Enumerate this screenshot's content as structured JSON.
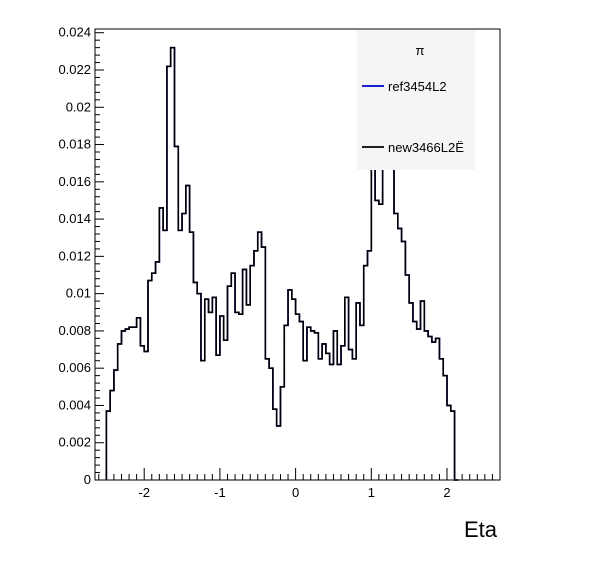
{
  "chart_data": {
    "type": "histogram",
    "xlabel": "Eta",
    "ylabel": "",
    "xlim": [
      -2.65,
      2.7
    ],
    "ylim": [
      0,
      0.0242
    ],
    "x_ticks": [
      -2,
      -1,
      0,
      1,
      2
    ],
    "x_tick_labels": [
      "-2",
      "-1",
      "0",
      "1",
      "2"
    ],
    "y_ticks": [
      0,
      0.002,
      0.004,
      0.006,
      0.008,
      0.01,
      0.012,
      0.014,
      0.016,
      0.018,
      0.02,
      0.022,
      0.024
    ],
    "y_tick_labels": [
      "0",
      "0.002",
      "0.004",
      "0.006",
      "0.008",
      "0.01",
      "0.012",
      "0.014",
      "0.016",
      "0.018",
      "0.02",
      "0.022",
      "0.024"
    ],
    "bin_start": -2.5,
    "bin_width": 0.05,
    "legend": {
      "position": "top-right",
      "title": "π",
      "entries": [
        {
          "label": "ref3454L2",
          "color": "#0000cc"
        },
        {
          "label": "new3466L2Ë",
          "color": "#000000"
        }
      ]
    },
    "series": [
      {
        "name": "ref3454L2",
        "color": "#0000cc",
        "values": [
          0.0037,
          0.0048,
          0.0059,
          0.0073,
          0.008,
          0.0081,
          0.0082,
          0.0082,
          0.0087,
          0.0072,
          0.0069,
          0.0107,
          0.0111,
          0.0117,
          0.0146,
          0.0134,
          0.0222,
          0.0232,
          0.0179,
          0.0134,
          0.0143,
          0.0158,
          0.0133,
          0.0106,
          0.01,
          0.0064,
          0.0097,
          0.009,
          0.0098,
          0.0067,
          0.0088,
          0.0075,
          0.0104,
          0.0111,
          0.009,
          0.0089,
          0.0113,
          0.0094,
          0.0115,
          0.0123,
          0.0133,
          0.0125,
          0.0065,
          0.006,
          0.0038,
          0.0029,
          0.005,
          0.0083,
          0.0102,
          0.0097,
          0.0089,
          0.0085,
          0.0064,
          0.0082,
          0.008,
          0.0079,
          0.0065,
          0.0073,
          0.0068,
          0.0062,
          0.008,
          0.0062,
          0.0072,
          0.0098,
          0.007,
          0.0065,
          0.0095,
          0.0083,
          0.0115,
          0.0123,
          0.0167,
          0.015,
          0.0148,
          0.018,
          0.018,
          0.0185,
          0.0143,
          0.0135,
          0.0128,
          0.011,
          0.0095,
          0.0085,
          0.0081,
          0.0096,
          0.008,
          0.0077,
          0.0074,
          0.0076,
          0.0065,
          0.0056,
          0.004,
          0.0037,
          0.0
        ]
      },
      {
        "name": "new3466L2Ë",
        "color": "#000000",
        "values": [
          0.0037,
          0.0048,
          0.0059,
          0.0073,
          0.008,
          0.0081,
          0.0082,
          0.0082,
          0.0087,
          0.0072,
          0.0069,
          0.0107,
          0.0111,
          0.0117,
          0.0146,
          0.0134,
          0.0222,
          0.0232,
          0.0179,
          0.0134,
          0.0143,
          0.0158,
          0.0133,
          0.0106,
          0.01,
          0.0064,
          0.0097,
          0.009,
          0.0098,
          0.0067,
          0.0088,
          0.0075,
          0.0104,
          0.0111,
          0.009,
          0.0089,
          0.0113,
          0.0094,
          0.0115,
          0.0123,
          0.0133,
          0.0125,
          0.0065,
          0.006,
          0.0038,
          0.0029,
          0.005,
          0.0083,
          0.0102,
          0.0097,
          0.0089,
          0.0085,
          0.0064,
          0.0082,
          0.008,
          0.0079,
          0.0065,
          0.0073,
          0.0068,
          0.0062,
          0.008,
          0.0062,
          0.0072,
          0.0098,
          0.007,
          0.0065,
          0.0095,
          0.0083,
          0.0115,
          0.0123,
          0.0167,
          0.015,
          0.0148,
          0.018,
          0.018,
          0.0185,
          0.0143,
          0.0135,
          0.0128,
          0.011,
          0.0095,
          0.0085,
          0.0081,
          0.0096,
          0.008,
          0.0077,
          0.0074,
          0.0076,
          0.0065,
          0.0056,
          0.004,
          0.0037,
          0.0
        ]
      }
    ]
  }
}
